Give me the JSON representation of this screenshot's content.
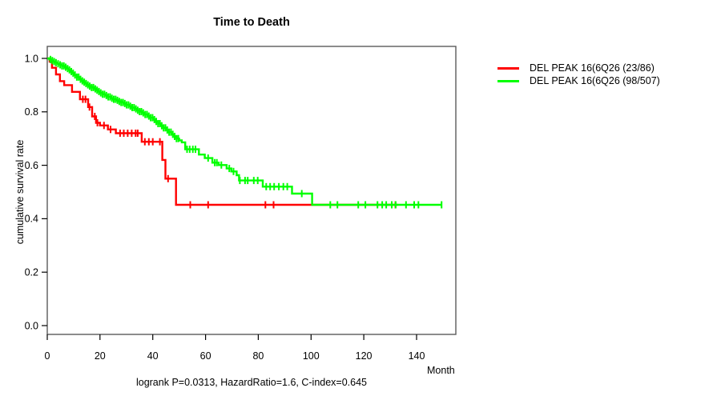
{
  "chart_data": {
    "type": "line",
    "subtype": "kaplan-meier-step",
    "title": "Time to Death",
    "xlabel": "Month",
    "ylabel": "cumulative survival rate",
    "footnote": "logrank P=0.0313, HazardRatio=1.6, C-index=0.645",
    "grid": false,
    "legend_position": "top-right-outside",
    "xlim": [
      0,
      154
    ],
    "ylim": [
      0.0,
      1.0
    ],
    "x_ticks": {
      "values": [
        0,
        20,
        40,
        60,
        80,
        100,
        120,
        140
      ],
      "labels": [
        "0",
        "20",
        "40",
        "60",
        "80",
        "100",
        "120",
        "140"
      ]
    },
    "y_ticks": {
      "values": [
        1.0,
        0.8,
        0.6,
        0.4,
        0.2,
        0.0
      ],
      "labels": [
        "1.0",
        "0.8",
        "0.6",
        "0.4",
        "0.2",
        "0.0"
      ]
    },
    "series": [
      {
        "name": "DEL PEAK 16(6Q26 (23/86)",
        "color": "#FF0000",
        "end_month": 133,
        "steps": [
          [
            0,
            1.0
          ],
          [
            0.9,
            0.988
          ],
          [
            1.8,
            0.965
          ],
          [
            3.3,
            0.94
          ],
          [
            4.8,
            0.915
          ],
          [
            6.4,
            0.9
          ],
          [
            9.4,
            0.875
          ],
          [
            12.4,
            0.847
          ],
          [
            15.5,
            0.818
          ],
          [
            17,
            0.783
          ],
          [
            18.5,
            0.759
          ],
          [
            20,
            0.749
          ],
          [
            23,
            0.734
          ],
          [
            26,
            0.72
          ],
          [
            35.8,
            0.688
          ],
          [
            43.6,
            0.62
          ],
          [
            44.8,
            0.55
          ],
          [
            48.8,
            0.452
          ]
        ],
        "censor_months": [
          13.5,
          14.5,
          16,
          18,
          19,
          21.5,
          24,
          27.6,
          29,
          30.5,
          32,
          33.5,
          34.3,
          37,
          38.5,
          40,
          42.7,
          45.8,
          54.2,
          61,
          82.7,
          85.8,
          132
        ]
      },
      {
        "name": "DEL PEAK 16(6Q26 (98/507)",
        "color": "#00FF00",
        "end_month": 149.5,
        "steps": [
          [
            0,
            1.0
          ],
          [
            0.8,
            0.996
          ],
          [
            1.6,
            0.992
          ],
          [
            2.4,
            0.988
          ],
          [
            3.2,
            0.984
          ],
          [
            4,
            0.98
          ],
          [
            4.8,
            0.976
          ],
          [
            5.6,
            0.972
          ],
          [
            6.4,
            0.967
          ],
          [
            7.2,
            0.962
          ],
          [
            8,
            0.957
          ],
          [
            8.8,
            0.951
          ],
          [
            9.6,
            0.945
          ],
          [
            10.4,
            0.938
          ],
          [
            11.2,
            0.93
          ],
          [
            12,
            0.922
          ],
          [
            12.8,
            0.916
          ],
          [
            13.6,
            0.911
          ],
          [
            14.4,
            0.906
          ],
          [
            15.2,
            0.901
          ],
          [
            16,
            0.896
          ],
          [
            16.8,
            0.891
          ],
          [
            17.6,
            0.886
          ],
          [
            18.4,
            0.881
          ],
          [
            19.2,
            0.876
          ],
          [
            20,
            0.871
          ],
          [
            21,
            0.866
          ],
          [
            22,
            0.861
          ],
          [
            23,
            0.856
          ],
          [
            24,
            0.851
          ],
          [
            25,
            0.847
          ],
          [
            26,
            0.843
          ],
          [
            27,
            0.839
          ],
          [
            28,
            0.835
          ],
          [
            29,
            0.831
          ],
          [
            30,
            0.826
          ],
          [
            31,
            0.821
          ],
          [
            32,
            0.816
          ],
          [
            33,
            0.811
          ],
          [
            34,
            0.806
          ],
          [
            35,
            0.801
          ],
          [
            36,
            0.796
          ],
          [
            37,
            0.79
          ],
          [
            38,
            0.784
          ],
          [
            39,
            0.778
          ],
          [
            40,
            0.771
          ],
          [
            41,
            0.764
          ],
          [
            42,
            0.756
          ],
          [
            43,
            0.748
          ],
          [
            44,
            0.74
          ],
          [
            45,
            0.732
          ],
          [
            46,
            0.724
          ],
          [
            47,
            0.716
          ],
          [
            48,
            0.708
          ],
          [
            49,
            0.7
          ],
          [
            50,
            0.693
          ],
          [
            51,
            0.686
          ],
          [
            52.3,
            0.66
          ],
          [
            57.5,
            0.64
          ],
          [
            59.7,
            0.627
          ],
          [
            62.6,
            0.61
          ],
          [
            65,
            0.601
          ],
          [
            68,
            0.588
          ],
          [
            69.8,
            0.577
          ],
          [
            71.8,
            0.563
          ],
          [
            72.7,
            0.543
          ],
          [
            81.7,
            0.52
          ],
          [
            92.8,
            0.494
          ],
          [
            100.4,
            0.452
          ]
        ],
        "censor_months": [
          1.2,
          1.9,
          2.6,
          3.3,
          4.1,
          4.9,
          5.6,
          6.3,
          7.0,
          7.7,
          8.4,
          9.1,
          9.8,
          10.5,
          11.2,
          11.9,
          12.6,
          13.3,
          14.0,
          14.7,
          15.4,
          16.1,
          16.8,
          17.5,
          18.2,
          18.9,
          19.6,
          20.3,
          21.0,
          21.7,
          22.4,
          23.1,
          23.8,
          24.5,
          25.2,
          25.9,
          26.6,
          27.3,
          28.0,
          28.7,
          29.4,
          30.1,
          30.8,
          31.5,
          32.2,
          32.9,
          33.6,
          34.3,
          35.0,
          35.7,
          36.4,
          37.1,
          37.8,
          38.5,
          39.2,
          39.9,
          40.6,
          41.3,
          42.0,
          42.7,
          43.4,
          44.1,
          44.8,
          45.5,
          46.2,
          46.9,
          47.6,
          48.3,
          49.0,
          49.7,
          53,
          54,
          55.2,
          56.2,
          61,
          63.5,
          64.3,
          66,
          69,
          70.6,
          73,
          75,
          76,
          78.3,
          79.8,
          83,
          84.5,
          86,
          87.8,
          89.5,
          91,
          96.5,
          107.3,
          110,
          117.9,
          120.6,
          125.2,
          127,
          128.5,
          130.6,
          132.1,
          136,
          139.1,
          140.7,
          149.5
        ]
      }
    ]
  }
}
